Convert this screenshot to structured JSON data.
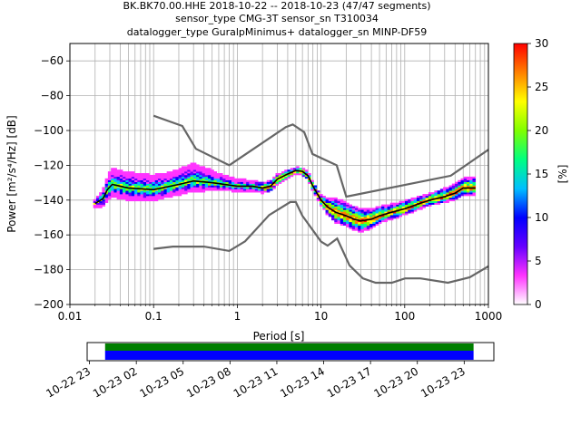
{
  "chart_data": {
    "type": "heatmap",
    "title_lines": [
      "BK.BK70.00.HHE   2018-10-22 -- 2018-10-23  (47/47 segments)",
      "sensor_type CMG-3T sensor_sn T310034",
      "datalogger_type GuralpMinimus+ datalogger_sn MINP-DF59"
    ],
    "xlabel": "Period [s]",
    "ylabel": "Power [m²/s⁴/Hz] [dB]",
    "x_scale": "log",
    "xlim": [
      0.01,
      1000
    ],
    "ylim": [
      -200,
      -50
    ],
    "x_ticks": [
      {
        "value": 0.01,
        "label": "0.01"
      },
      {
        "value": 0.1,
        "label": "0.1"
      },
      {
        "value": 1,
        "label": "1"
      },
      {
        "value": 10,
        "label": "10"
      },
      {
        "value": 100,
        "label": "100"
      },
      {
        "value": 1000,
        "label": "1000"
      }
    ],
    "y_ticks": [
      {
        "value": -60,
        "label": "−60"
      },
      {
        "value": -80,
        "label": "−80"
      },
      {
        "value": -100,
        "label": "−100"
      },
      {
        "value": -120,
        "label": "−120"
      },
      {
        "value": -140,
        "label": "−140"
      },
      {
        "value": -160,
        "label": "−160"
      },
      {
        "value": -180,
        "label": "−180"
      },
      {
        "value": -200,
        "label": "−200"
      }
    ],
    "grid": true,
    "colorbar": {
      "label": "[%]",
      "range": [
        0,
        30
      ],
      "ticks": [
        {
          "value": 0,
          "label": "0"
        },
        {
          "value": 5,
          "label": "5"
        },
        {
          "value": 10,
          "label": "10"
        },
        {
          "value": 15,
          "label": "15"
        },
        {
          "value": 20,
          "label": "20"
        },
        {
          "value": 25,
          "label": "25"
        },
        {
          "value": 30,
          "label": "30"
        }
      ],
      "colors": [
        "#ffffff",
        "#ff33ff",
        "#6600ff",
        "#0000ff",
        "#00bfff",
        "#00ff80",
        "#80ff00",
        "#ffff00",
        "#ff8000",
        "#ff0000"
      ]
    },
    "high_noise_model": [
      [
        0.1,
        -91.5
      ],
      [
        0.22,
        -97.4
      ],
      [
        0.32,
        -110.5
      ],
      [
        0.8,
        -120
      ],
      [
        3.8,
        -98
      ],
      [
        4.6,
        -96.5
      ],
      [
        6.3,
        -101
      ],
      [
        7.9,
        -113.5
      ],
      [
        15.4,
        -120
      ],
      [
        20,
        -138
      ],
      [
        354.8,
        -126
      ],
      [
        1000,
        -111
      ]
    ],
    "low_noise_model": [
      [
        0.1,
        -168
      ],
      [
        0.17,
        -166.7
      ],
      [
        0.4,
        -166.7
      ],
      [
        0.8,
        -169.2
      ],
      [
        1.24,
        -163.7
      ],
      [
        2.4,
        -148.6
      ],
      [
        4.3,
        -141.1
      ],
      [
        5.0,
        -141.1
      ],
      [
        6.0,
        -149
      ],
      [
        10,
        -163.8
      ],
      [
        12,
        -166.2
      ],
      [
        15.6,
        -162.1
      ],
      [
        21.9,
        -177.5
      ],
      [
        31.6,
        -185
      ],
      [
        45,
        -187.5
      ],
      [
        70,
        -187.5
      ],
      [
        101,
        -185
      ],
      [
        154,
        -185
      ],
      [
        328,
        -187.5
      ],
      [
        600,
        -184.4
      ],
      [
        1000,
        -178
      ]
    ],
    "mode_series": [
      [
        0.02,
        -142
      ],
      [
        0.025,
        -139
      ],
      [
        0.028,
        -134
      ],
      [
        0.032,
        -131
      ],
      [
        0.05,
        -133
      ],
      [
        0.1,
        -134
      ],
      [
        0.2,
        -131
      ],
      [
        0.3,
        -129
      ],
      [
        0.5,
        -130
      ],
      [
        1,
        -132
      ],
      [
        1.5,
        -132
      ],
      [
        2,
        -133
      ],
      [
        2.5,
        -132
      ],
      [
        3,
        -128
      ],
      [
        4,
        -125
      ],
      [
        5,
        -123
      ],
      [
        6,
        -123.5
      ],
      [
        7,
        -126
      ],
      [
        8,
        -132
      ],
      [
        10,
        -140
      ],
      [
        12,
        -144
      ],
      [
        15,
        -147
      ],
      [
        20,
        -149
      ],
      [
        25,
        -151
      ],
      [
        30,
        -152
      ],
      [
        40,
        -151
      ],
      [
        50,
        -149
      ],
      [
        70,
        -147
      ],
      [
        100,
        -145
      ],
      [
        150,
        -142
      ],
      [
        200,
        -140
      ],
      [
        300,
        -138
      ],
      [
        400,
        -136
      ],
      [
        500,
        -133
      ],
      [
        700,
        -133
      ]
    ],
    "spread_top_dB": [
      [
        0.02,
        1
      ],
      [
        0.03,
        8
      ],
      [
        0.05,
        8
      ],
      [
        0.15,
        7
      ],
      [
        0.3,
        9
      ],
      [
        0.6,
        5
      ],
      [
        1,
        3
      ],
      [
        3,
        2
      ],
      [
        5,
        1
      ],
      [
        10,
        2
      ],
      [
        15,
        7
      ],
      [
        30,
        6
      ],
      [
        60,
        4
      ],
      [
        200,
        3
      ],
      [
        500,
        5
      ],
      [
        700,
        5
      ]
    ],
    "spread_bottom_dB": [
      [
        0.02,
        1
      ],
      [
        0.03,
        6
      ],
      [
        0.05,
        6
      ],
      [
        0.15,
        5
      ],
      [
        0.3,
        5
      ],
      [
        0.6,
        3
      ],
      [
        1,
        2
      ],
      [
        3,
        2
      ],
      [
        5,
        1
      ],
      [
        10,
        2
      ],
      [
        15,
        5
      ],
      [
        30,
        5
      ],
      [
        60,
        3
      ],
      [
        200,
        2
      ],
      [
        500,
        3
      ],
      [
        700,
        3
      ]
    ],
    "timeline": {
      "ticks": [
        {
          "value": 0,
          "label": "10-22 23"
        },
        {
          "value": 3,
          "label": "10-23 02"
        },
        {
          "value": 6,
          "label": "10-23 05"
        },
        {
          "value": 9,
          "label": "10-23 08"
        },
        {
          "value": 12,
          "label": "10-23 11"
        },
        {
          "value": 15,
          "label": "10-23 14"
        },
        {
          "value": 18,
          "label": "10-23 17"
        },
        {
          "value": 21,
          "label": "10-23 20"
        },
        {
          "value": 24,
          "label": "10-23 23"
        }
      ],
      "range_hours": [
        -0.15,
        25.9
      ],
      "data_start_hours": 1.0,
      "data_end_hours": 24.6,
      "colors": {
        "green": "#007f00",
        "blue": "#0000ff"
      }
    }
  }
}
